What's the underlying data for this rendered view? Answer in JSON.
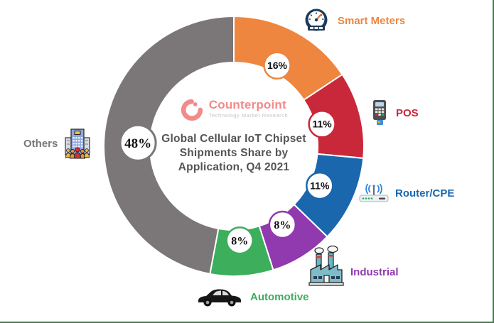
{
  "page": {
    "background": "#FFFFFF",
    "frame_border_color": "#4D7A50"
  },
  "branding": {
    "name": "Counterpoint",
    "tagline": "Technology Market Research",
    "logo_color": "#F28A8A",
    "tagline_color": "#C4C4C4"
  },
  "chart_data": {
    "type": "pie",
    "subtype": "donut",
    "title": "Global Cellular IoT Chipset Shipments Share by Application, Q4 2021",
    "title_lines": [
      "Global Cellular IoT Chipset",
      "Shipments Share by",
      "Application, Q4 2021"
    ],
    "start_angle_deg": 0,
    "direction": "clockwise",
    "legend_position": "around-callouts",
    "segments": [
      {
        "label": "Smart Meters",
        "value_pct": 16,
        "pct_label": "16%",
        "color": "#EE8640",
        "icon": "gauge-icon",
        "pct_font": "sans"
      },
      {
        "label": "POS",
        "value_pct": 11,
        "pct_label": "11%",
        "color": "#C9283A",
        "icon": "pos-terminal-icon",
        "pct_font": "sans"
      },
      {
        "label": "Router/CPE",
        "value_pct": 11,
        "pct_label": "11%",
        "color": "#1A67AE",
        "icon": "router-icon",
        "pct_font": "sans"
      },
      {
        "label": "Industrial",
        "value_pct": 8,
        "pct_label": "8%",
        "color": "#9139AE",
        "icon": "factory-icon",
        "pct_font": "serif"
      },
      {
        "label": "Automotive",
        "value_pct": 8,
        "pct_label": "8%",
        "color": "#3CAE5C",
        "icon": "car-icon",
        "pct_font": "serif"
      },
      {
        "label": "Others",
        "value_pct": 48,
        "pct_label": "48%",
        "color": "#7B7778",
        "icon": "building-people-icon",
        "pct_font": "serif"
      }
    ]
  }
}
